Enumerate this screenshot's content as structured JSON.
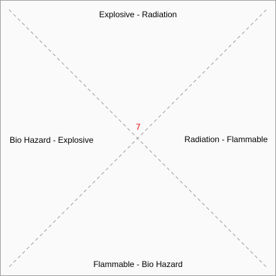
{
  "labels": {
    "top": "Explosive - Radiation",
    "right": "Radiation - Flammable",
    "bottom": "Flammable - Bio Hazard",
    "left": "Bio Hazard - Explosive"
  },
  "center": {
    "value": "7"
  },
  "colors": {
    "background": "#fafafa",
    "border": "#a0a0a0",
    "diagonal_lines": "#888888",
    "label_text": "#000000",
    "center_value": "#e00000"
  },
  "diagonal_line_style": "dashed"
}
